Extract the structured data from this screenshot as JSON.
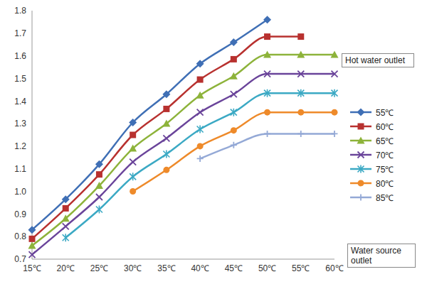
{
  "chart_data": {
    "type": "line",
    "x_label": "Water source outlet",
    "legend_title": "Hot water outlet",
    "legend": "right",
    "grid": false,
    "categories": [
      "15℃",
      "20℃",
      "25℃",
      "30℃",
      "35℃",
      "40℃",
      "45℃",
      "50℃",
      "55℃",
      "60℃"
    ],
    "ylim": [
      0.7,
      1.8
    ],
    "yticks": [
      0.7,
      0.8,
      0.9,
      {
        "value": 1,
        "label": "1.0"
      },
      1.1,
      1.2,
      1.3,
      1.4,
      1.5,
      1.6,
      1.7,
      1.8
    ],
    "series": [
      {
        "name": "55℃",
        "color": "#3f6fb5",
        "marker": "diamond",
        "values": [
          0.83,
          0.965,
          1.12,
          1.305,
          1.43,
          1.565,
          1.66,
          1.76,
          null,
          null
        ]
      },
      {
        "name": "60℃",
        "color": "#b8312f",
        "marker": "square",
        "values": [
          0.79,
          0.925,
          1.075,
          1.25,
          1.365,
          1.495,
          1.585,
          1.685,
          1.685,
          null
        ]
      },
      {
        "name": "65℃",
        "color": "#8db33a",
        "marker": "triangle",
        "values": [
          0.76,
          0.88,
          1.025,
          1.19,
          1.3,
          1.425,
          1.51,
          1.605,
          1.605,
          1.605
        ]
      },
      {
        "name": "70℃",
        "color": "#6a449a",
        "marker": "cross",
        "values": [
          0.72,
          0.845,
          0.975,
          1.13,
          1.235,
          1.35,
          1.43,
          1.52,
          1.52,
          1.52
        ]
      },
      {
        "name": "75℃",
        "color": "#3ba9c4",
        "marker": "star",
        "values": [
          null,
          0.795,
          0.92,
          1.065,
          1.165,
          1.275,
          1.35,
          1.435,
          1.435,
          1.435
        ]
      },
      {
        "name": "80℃",
        "color": "#ee8a2a",
        "marker": "circle",
        "values": [
          null,
          null,
          null,
          1.0,
          1.095,
          1.2,
          1.27,
          1.35,
          1.35,
          1.35
        ]
      },
      {
        "name": "85℃",
        "color": "#94a9d6",
        "marker": "plus",
        "values": [
          null,
          null,
          null,
          null,
          null,
          1.145,
          1.205,
          1.255,
          1.255,
          1.255
        ]
      }
    ]
  }
}
